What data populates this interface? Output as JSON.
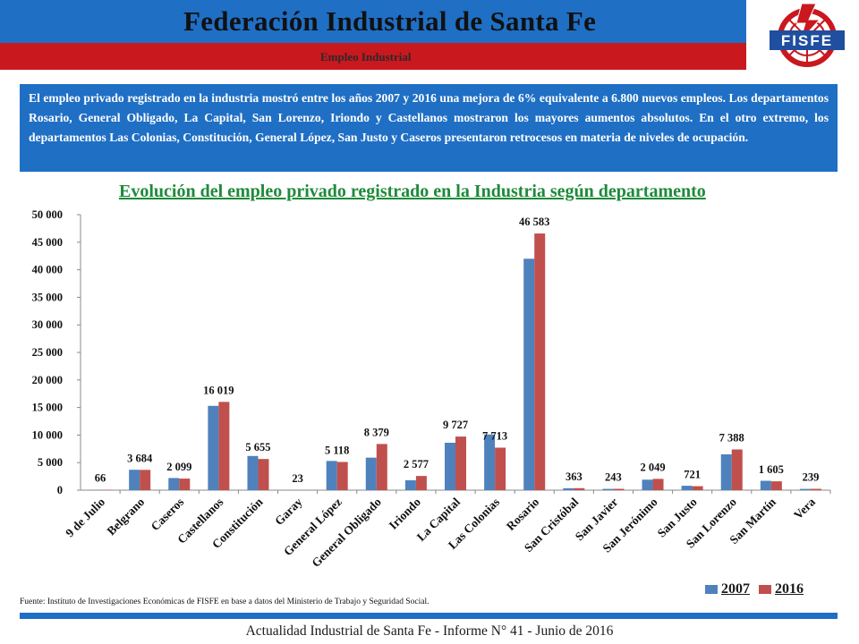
{
  "header": {
    "title": "Federación Industrial de Santa Fe",
    "subtitle": "Empleo Industrial"
  },
  "logo": {
    "text": "FISFE",
    "icon": "fisfe-gear-bolt-logo"
  },
  "summary": {
    "text": "El empleo privado registrado en la industria mostró entre los años 2007 y 2016 una mejora de 6% equivalente a 6.800 nuevos empleos. Los departamentos Rosario, General Obligado, La Capital, San Lorenzo, Iriondo y Castellanos mostraron los mayores aumentos absolutos. En el otro extremo, los departamentos Las Colonias, Constitución, General López, San Justo y Caseros presentaron retrocesos en materia de niveles de ocupación."
  },
  "chart_data": {
    "type": "bar",
    "title": "Evolución del empleo privado registrado en la Industria según departamento",
    "categories": [
      "9 de Julio",
      "Belgrano",
      "Caseros",
      "Castellanos",
      "Constitución",
      "Garay",
      "General López",
      "General Obligado",
      "Iriondo",
      "La Capital",
      "Las Colonias",
      "Rosario",
      "San Cristóbal",
      "San Javier",
      "San Jerónimo",
      "San Justo",
      "San Lorenzo",
      "San Martín",
      "Vera"
    ],
    "series": [
      {
        "name": "2007",
        "color": "#4f81bd",
        "values": [
          60,
          3700,
          2200,
          15300,
          6200,
          20,
          5300,
          5900,
          1800,
          8600,
          10100,
          42000,
          350,
          230,
          1900,
          800,
          6500,
          1700,
          230
        ]
      },
      {
        "name": "2016",
        "color": "#c0504d",
        "values": [
          66,
          3684,
          2099,
          16019,
          5655,
          23,
          5118,
          8379,
          2577,
          9727,
          7713,
          46583,
          363,
          243,
          2049,
          721,
          7388,
          1605,
          239
        ]
      }
    ],
    "data_labels": [
      "66",
      "3 684",
      "2 099",
      "16 019",
      "5 655",
      "23",
      "5 118",
      "8 379",
      "2 577",
      "9 727",
      "7 713",
      "46 583",
      "363",
      "243",
      "2 049",
      "721",
      "7 388",
      "1 605",
      "239"
    ],
    "ylim": [
      0,
      50000
    ],
    "yticks": [
      "0",
      "5 000",
      "10 000",
      "15 000",
      "20 000",
      "25 000",
      "30 000",
      "35 000",
      "40 000",
      "45 000",
      "50 000"
    ],
    "grid": false,
    "legend_position": "bottom-right"
  },
  "source": "Fuente: Instituto de Investigaciones Económicas de FISFE en base a datos del Ministerio de Trabajo y Seguridad Social.",
  "footer": "Actualidad Industrial de Santa Fe - Informe N° 41 - Junio de 2016"
}
